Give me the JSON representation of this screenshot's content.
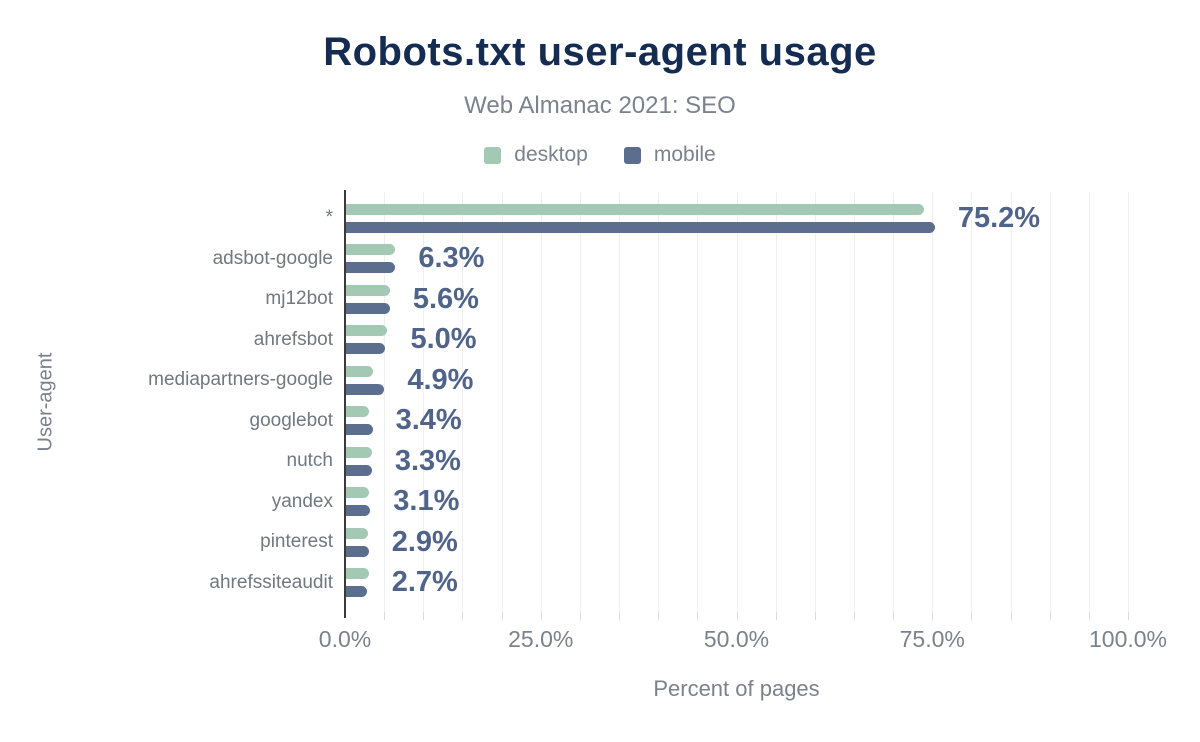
{
  "header": {
    "title": "Robots.txt user-agent usage",
    "subtitle": "Web Almanac 2021: SEO"
  },
  "legend": {
    "items": [
      {
        "label": "desktop",
        "color": "#a3c9b4"
      },
      {
        "label": "mobile",
        "color": "#5b6e8e"
      }
    ]
  },
  "colors": {
    "title": "#152c52",
    "muted_text": "#7b828c",
    "category_text": "#71787f",
    "value_label": "#50648a",
    "desktop_bar": "#a3c9b4",
    "mobile_bar": "#5b6e8e",
    "gridline": "#efefef",
    "axis_line": "#3a3a3a"
  },
  "chart_data": {
    "type": "bar",
    "orientation": "horizontal",
    "title": "Robots.txt user-agent usage",
    "subtitle": "Web Almanac 2021: SEO",
    "xlabel": "Percent of pages",
    "ylabel": "User-agent",
    "xlim": [
      0,
      100
    ],
    "grid": "vertical minor gridlines every 5%",
    "legend_position": "top",
    "categories": [
      "*",
      "adsbot-google",
      "mj12bot",
      "ahrefsbot",
      "mediapartners-google",
      "googlebot",
      "nutch",
      "yandex",
      "pinterest",
      "ahrefssiteaudit"
    ],
    "series": [
      {
        "name": "desktop",
        "color": "#a3c9b4",
        "values": [
          73.8,
          6.2,
          5.6,
          5.3,
          3.4,
          3.0,
          3.3,
          3.0,
          2.8,
          2.9
        ]
      },
      {
        "name": "mobile",
        "color": "#5b6e8e",
        "values": [
          75.2,
          6.3,
          5.6,
          5.0,
          4.9,
          3.4,
          3.3,
          3.1,
          2.9,
          2.7
        ]
      }
    ],
    "bar_labels": [
      "75.2%",
      "6.3%",
      "5.6%",
      "5.0%",
      "4.9%",
      "3.4%",
      "3.3%",
      "3.1%",
      "2.9%",
      "2.7%"
    ],
    "x_ticks": [
      {
        "label": "0.0%",
        "value": 0
      },
      {
        "label": "25.0%",
        "value": 25
      },
      {
        "label": "50.0%",
        "value": 50
      },
      {
        "label": "75.0%",
        "value": 75
      },
      {
        "label": "100.0%",
        "value": 100
      }
    ]
  }
}
